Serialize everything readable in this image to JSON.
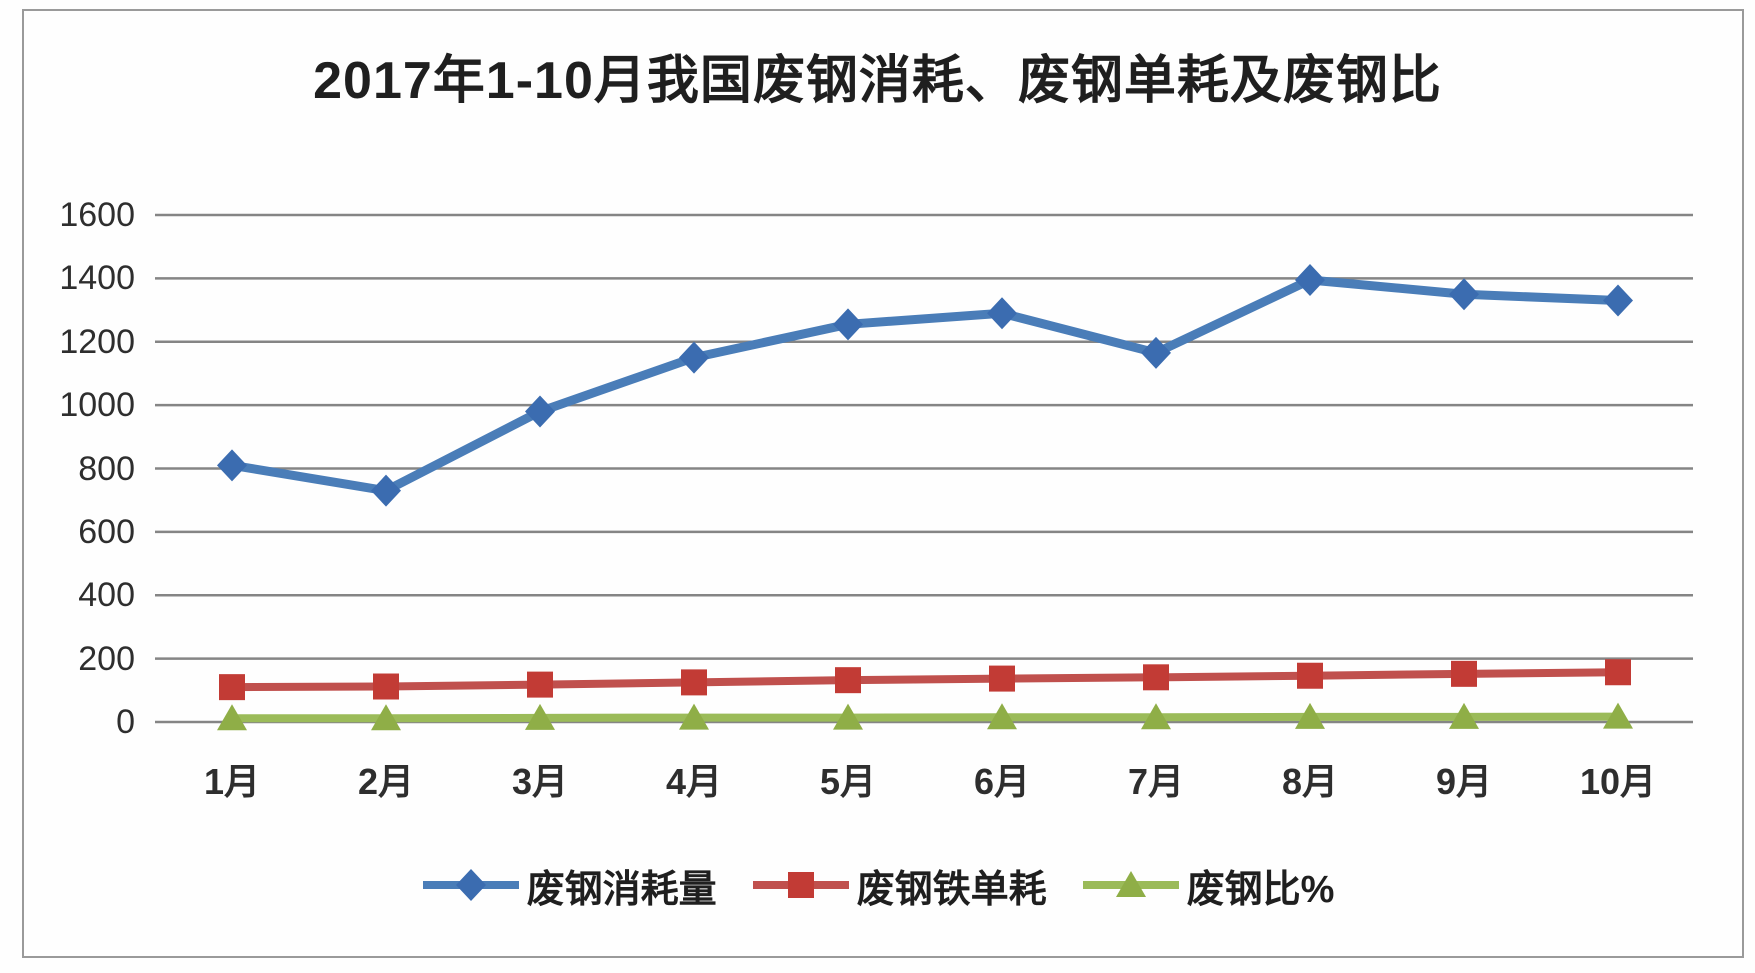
{
  "chart_data": {
    "type": "line",
    "title": "2017年1-10月我国废钢消耗、废钢单耗及废钢比",
    "categories": [
      "1月",
      "2月",
      "3月",
      "4月",
      "5月",
      "6月",
      "7月",
      "8月",
      "9月",
      "10月"
    ],
    "yticks": [
      0,
      200,
      400,
      600,
      800,
      1000,
      1200,
      1400,
      1600
    ],
    "ylim": [
      0,
      1600
    ],
    "grid": true,
    "legend_position": "bottom",
    "gridline_color": "#858585",
    "series": [
      {
        "name": "废钢消耗量",
        "marker": "diamond",
        "line_color": "#4a7db8",
        "marker_color": "#3b6cb0",
        "values": [
          810,
          730,
          980,
          1150,
          1255,
          1290,
          1165,
          1395,
          1350,
          1330
        ]
      },
      {
        "name": "废钢铁单耗",
        "marker": "square",
        "line_color": "#c0504d",
        "marker_color": "#c23b35",
        "values": [
          110,
          112,
          118,
          125,
          132,
          137,
          141,
          146,
          152,
          157
        ]
      },
      {
        "name": "废钢比%",
        "marker": "triangle",
        "line_color": "#9bbb59",
        "marker_color": "#8fae47",
        "values": [
          12,
          12,
          13,
          14,
          14,
          15,
          15,
          16,
          16,
          17
        ]
      }
    ]
  }
}
